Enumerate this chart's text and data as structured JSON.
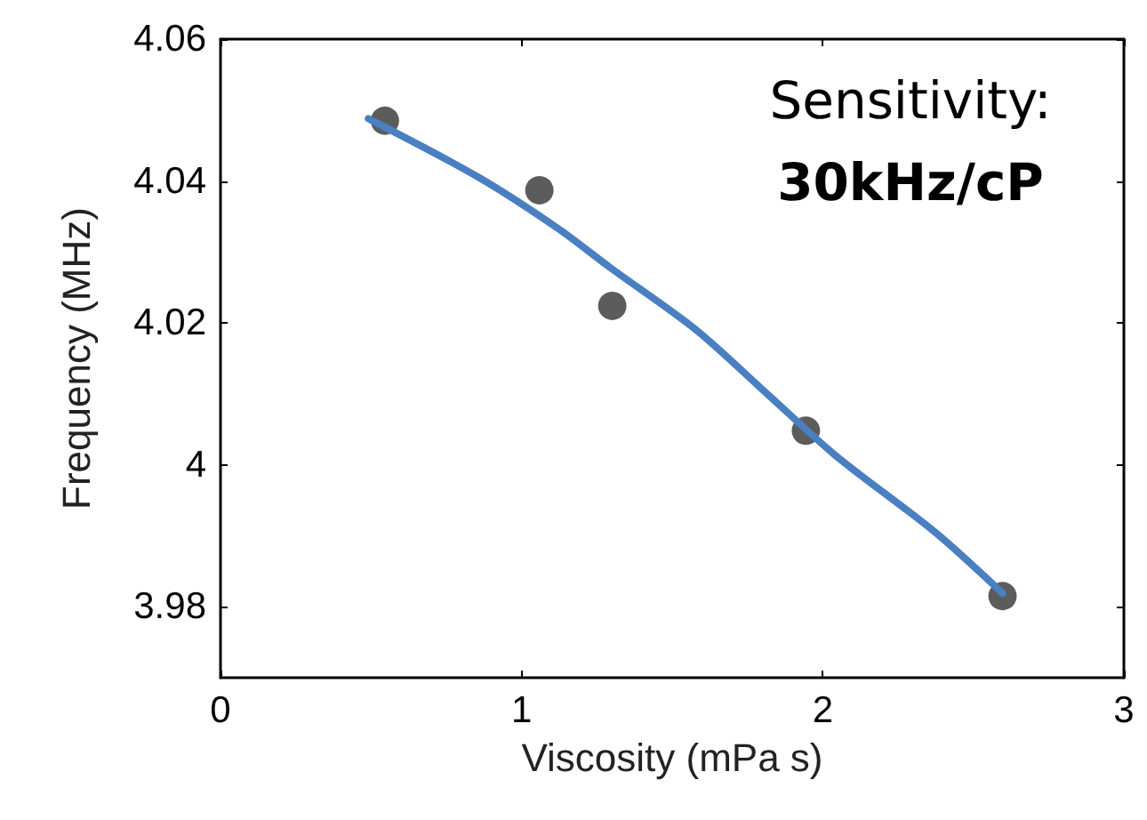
{
  "chart_data": {
    "type": "scatter",
    "xlabel": "Viscosity (mPa s)",
    "ylabel": "Frequency (MHz)",
    "xlim": [
      0,
      3
    ],
    "xticks": [
      0,
      1,
      2,
      3
    ],
    "ylim": [
      3.97,
      4.06
    ],
    "yticks": [
      3.98,
      4,
      4.02,
      4.04,
      4.06
    ],
    "grid": false,
    "marker": "circle",
    "annotations": [
      "Sensitivity:",
      "30kHz/cP"
    ],
    "series": [
      {
        "color": "#333333",
        "x": [
          0.546,
          1.059,
          1.301,
          1.944,
          2.597
        ],
        "values": [
          4.0485,
          4.0387,
          4.0224,
          4.0048,
          3.9815
        ]
      },
      {
        "type": "line",
        "color": "#4a7fc1",
        "marker": "none",
        "line_style": "solid",
        "x": [
          0.491,
          0.854,
          1.118,
          1.294,
          1.58,
          1.823,
          2.043,
          2.373,
          2.597
        ],
        "values": [
          4.0488,
          4.0406,
          4.0334,
          4.0278,
          4.019,
          4.0097,
          4.0013,
          3.9905,
          3.9819
        ]
      }
    ]
  }
}
